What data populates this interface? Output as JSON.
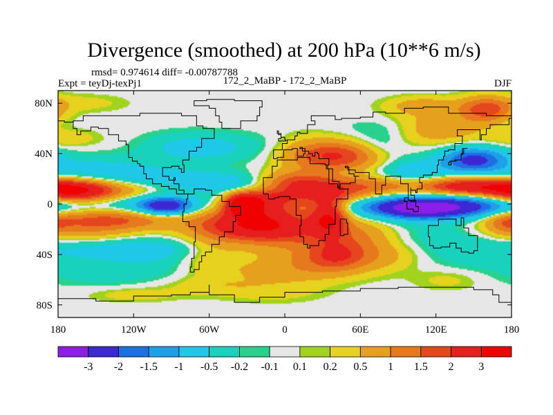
{
  "chart_data": {
    "type": "heatmap",
    "title": "Divergence (smoothed) at 200 hPa (10**6 m/s)",
    "stats": "rmsd= 0.974614 diff= -0.00787788",
    "experiment": "Expt = teyDj-texPj1",
    "comparison": "172_2_MaBP - 172_2_MaBP",
    "season": "DJF",
    "xlim": [
      -180,
      180
    ],
    "ylim": [
      -90,
      90
    ],
    "x_ticks": [
      {
        "value": -180,
        "label": "180"
      },
      {
        "value": -120,
        "label": "120W"
      },
      {
        "value": -60,
        "label": "60W"
      },
      {
        "value": 0,
        "label": "0"
      },
      {
        "value": 60,
        "label": "60E"
      },
      {
        "value": 120,
        "label": "120E"
      },
      {
        "value": 180,
        "label": "180"
      }
    ],
    "y_ticks": [
      {
        "value": 80,
        "label": "80N"
      },
      {
        "value": 40,
        "label": "40N"
      },
      {
        "value": 0,
        "label": "0"
      },
      {
        "value": -40,
        "label": "40S"
      },
      {
        "value": -80,
        "label": "80S"
      }
    ],
    "levels": [
      "-3",
      "-2",
      "-1.5",
      "-1",
      "-0.5",
      "-0.2",
      "-0.1",
      "0.1",
      "0.2",
      "0.5",
      "1",
      "1.5",
      "2",
      "3"
    ],
    "colors": [
      "#8a1ee6",
      "#3c28d2",
      "#1e6ee6",
      "#1ea0e6",
      "#1ec8e6",
      "#19d2be",
      "#28d28c",
      "#e6e6e6",
      "#a0d21e",
      "#e6d21e",
      "#e6a01e",
      "#e6781e",
      "#e6461e",
      "#e61e1e",
      "#f00000"
    ],
    "features": [
      {
        "lon": -170,
        "lat": 10,
        "value": 2.4,
        "slon": 22,
        "slat": 6
      },
      {
        "lon": -150,
        "lat": 12,
        "value": 1.2,
        "slon": 35,
        "slat": 7
      },
      {
        "lon": -140,
        "lat": -12,
        "value": 1.6,
        "slon": 40,
        "slat": 6
      },
      {
        "lon": -160,
        "lat": -22,
        "value": 0.7,
        "slon": 30,
        "slat": 7
      },
      {
        "lon": -120,
        "lat": 20,
        "value": -0.9,
        "slon": 55,
        "slat": 6
      },
      {
        "lon": -110,
        "lat": 0,
        "value": -0.9,
        "slon": 45,
        "slat": 6
      },
      {
        "lon": -95,
        "lat": -2,
        "value": -2.2,
        "slon": 14,
        "slat": 5
      },
      {
        "lon": -150,
        "lat": 30,
        "value": -0.5,
        "slon": 35,
        "slat": 7
      },
      {
        "lon": -125,
        "lat": -35,
        "value": -0.6,
        "slon": 45,
        "slat": 6
      },
      {
        "lon": -90,
        "lat": -40,
        "value": -0.4,
        "slon": 40,
        "slat": 10
      },
      {
        "lon": -140,
        "lat": -55,
        "value": -0.3,
        "slon": 40,
        "slat": 8
      },
      {
        "lon": -175,
        "lat": 52,
        "value": 0.4,
        "slon": 20,
        "slat": 5
      },
      {
        "lon": -160,
        "lat": 80,
        "value": 0.3,
        "slon": 25,
        "slat": 5
      },
      {
        "lon": -80,
        "lat": 45,
        "value": -0.5,
        "slon": 25,
        "slat": 8
      },
      {
        "lon": -45,
        "lat": 45,
        "value": -0.4,
        "slon": 30,
        "slat": 8
      },
      {
        "lon": -40,
        "lat": 15,
        "value": -0.7,
        "slon": 30,
        "slat": 6
      },
      {
        "lon": -33,
        "lat": 0,
        "value": 3.2,
        "slon": 10,
        "slat": 6
      },
      {
        "lon": -20,
        "lat": -5,
        "value": 1.6,
        "slon": 25,
        "slat": 8
      },
      {
        "lon": -45,
        "lat": -18,
        "value": 1.3,
        "slon": 25,
        "slat": 8
      },
      {
        "lon": -10,
        "lat": -18,
        "value": 1.6,
        "slon": 25,
        "slat": 8
      },
      {
        "lon": 10,
        "lat": -25,
        "value": 1.0,
        "slon": 35,
        "slat": 10
      },
      {
        "lon": -60,
        "lat": -40,
        "value": 0.7,
        "slon": 20,
        "slat": 12
      },
      {
        "lon": 30,
        "lat": 10,
        "value": 2.2,
        "slon": 30,
        "slat": 8
      },
      {
        "lon": 35,
        "lat": -10,
        "value": 2.6,
        "slon": 10,
        "slat": 10
      },
      {
        "lon": 45,
        "lat": 38,
        "value": 1.8,
        "slon": 25,
        "slat": 8
      },
      {
        "lon": 20,
        "lat": 40,
        "value": 0.6,
        "slon": 20,
        "slat": 10
      },
      {
        "lon": 5,
        "lat": 18,
        "value": 1.1,
        "slon": 20,
        "slat": 6
      },
      {
        "lon": -15,
        "lat": 5,
        "value": 0.9,
        "slon": 15,
        "slat": 5
      },
      {
        "lon": 30,
        "lat": -45,
        "value": 0.8,
        "slon": 35,
        "slat": 8
      },
      {
        "lon": 0,
        "lat": -55,
        "value": 0.5,
        "slon": 35,
        "slat": 7
      },
      {
        "lon": 40,
        "lat": -40,
        "value": 1.1,
        "slon": 15,
        "slat": 8
      },
      {
        "lon": 60,
        "lat": -25,
        "value": 0.7,
        "slon": 20,
        "slat": 10
      },
      {
        "lon": 75,
        "lat": -40,
        "value": 0.5,
        "slon": 25,
        "slat": 8
      },
      {
        "lon": -60,
        "lat": -65,
        "value": 0.3,
        "slon": 30,
        "slat": 5
      },
      {
        "lon": -10,
        "lat": -70,
        "value": 0.3,
        "slon": 30,
        "slat": 6
      },
      {
        "lon": 130,
        "lat": -60,
        "value": 0.3,
        "slon": 20,
        "slat": 6
      },
      {
        "lon": -120,
        "lat": -72,
        "value": 0.35,
        "slon": 25,
        "slat": 4
      },
      {
        "lon": 60,
        "lat": -1,
        "value": -1.0,
        "slon": 25,
        "slat": 6
      },
      {
        "lon": 100,
        "lat": -3,
        "value": -2.6,
        "slon": 22,
        "slat": 6
      },
      {
        "lon": 130,
        "lat": -3,
        "value": -2.0,
        "slon": 25,
        "slat": 6
      },
      {
        "lon": 160,
        "lat": 0,
        "value": -1.0,
        "slon": 25,
        "slat": 7
      },
      {
        "lon": 80,
        "lat": 15,
        "value": 0.8,
        "slon": 18,
        "slat": 5
      },
      {
        "lon": 100,
        "lat": 25,
        "value": -0.9,
        "slon": 20,
        "slat": 8
      },
      {
        "lon": 95,
        "lat": 60,
        "value": -0.4,
        "slon": 30,
        "slat": 6
      },
      {
        "lon": 75,
        "lat": 45,
        "value": -0.5,
        "slon": 15,
        "slat": 8
      },
      {
        "lon": 150,
        "lat": 35,
        "value": -2.2,
        "slon": 18,
        "slat": 7
      },
      {
        "lon": 145,
        "lat": 14,
        "value": 2.6,
        "slon": 30,
        "slat": 5
      },
      {
        "lon": 120,
        "lat": 60,
        "value": 1.1,
        "slon": 25,
        "slat": 8
      },
      {
        "lon": 160,
        "lat": 75,
        "value": 1.8,
        "slon": 15,
        "slat": 7
      },
      {
        "lon": 110,
        "lat": 78,
        "value": 0.8,
        "slon": 20,
        "slat": 5
      },
      {
        "lon": 120,
        "lat": -25,
        "value": -0.3,
        "slon": 35,
        "slat": 10
      },
      {
        "lon": 150,
        "lat": -40,
        "value": -0.3,
        "slon": 40,
        "slat": 10
      },
      {
        "lon": 175,
        "lat": -15,
        "value": 0.8,
        "slon": 10,
        "slat": 6
      }
    ]
  }
}
